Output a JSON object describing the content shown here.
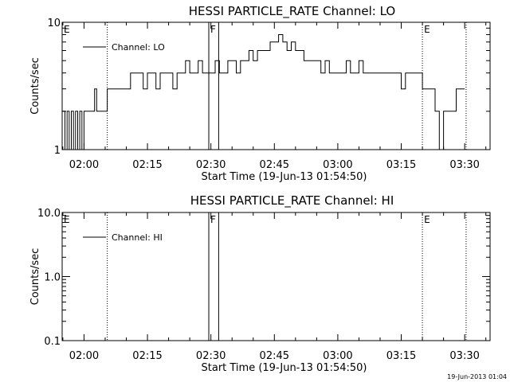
{
  "footer_timestamp": "19-Jun-2013 01:04",
  "chart_data": [
    {
      "type": "line",
      "title": "HESSI PARTICLE_RATE Channel: LO",
      "xlabel": "Start Time (19-Jun-13 01:54:50)",
      "ylabel": "Counts/sec",
      "yscale": "log",
      "ylim": [
        1,
        10
      ],
      "ytick_labels": [
        "1",
        "10"
      ],
      "xlim": [
        "01:54:50",
        "03:36:00"
      ],
      "xtick_labels": [
        "02:00",
        "02:15",
        "02:30",
        "02:45",
        "03:00",
        "03:15",
        "03:30"
      ],
      "legend": {
        "position": "top-left",
        "label": "Channel: LO"
      },
      "markers": [
        {
          "label": "E",
          "time": "01:54:50",
          "style": "dotted"
        },
        {
          "label": "",
          "time": "02:05:30",
          "style": "dotted"
        },
        {
          "label": "F",
          "time": "02:29:30",
          "style": "solid"
        },
        {
          "label": "",
          "time": "02:31:50",
          "style": "solid"
        },
        {
          "label": "E",
          "time": "03:20:00",
          "style": "dotted"
        },
        {
          "label": "",
          "time": "03:30:20",
          "style": "dotted"
        }
      ],
      "series": [
        {
          "name": "Channel: LO",
          "x": [
            "01:54:50",
            "01:55:30",
            "01:56:00",
            "01:56:30",
            "01:57:00",
            "01:57:30",
            "01:58:00",
            "01:58:30",
            "01:59:00",
            "01:59:30",
            "02:00:00",
            "02:01:00",
            "02:02:00",
            "02:02:30",
            "02:03:00",
            "02:04:00",
            "02:05:00",
            "02:05:30",
            "02:06:00",
            "02:07:00",
            "02:08:00",
            "02:09:00",
            "02:10:00",
            "02:11:00",
            "02:12:00",
            "02:13:00",
            "02:14:00",
            "02:15:00",
            "02:16:00",
            "02:17:00",
            "02:18:00",
            "02:19:00",
            "02:20:00",
            "02:21:00",
            "02:22:00",
            "02:23:00",
            "02:24:00",
            "02:25:00",
            "02:26:00",
            "02:27:00",
            "02:28:00",
            "02:29:00",
            "02:30:00",
            "02:31:00",
            "02:32:00",
            "02:33:00",
            "02:34:00",
            "02:35:00",
            "02:36:00",
            "02:37:00",
            "02:38:00",
            "02:39:00",
            "02:40:00",
            "02:41:00",
            "02:42:00",
            "02:43:00",
            "02:44:00",
            "02:45:00",
            "02:46:00",
            "02:47:00",
            "02:48:00",
            "02:49:00",
            "02:50:00",
            "02:51:00",
            "02:52:00",
            "02:53:00",
            "02:54:00",
            "02:55:00",
            "02:56:00",
            "02:57:00",
            "02:58:00",
            "02:59:00",
            "03:00:00",
            "03:01:00",
            "03:02:00",
            "03:03:00",
            "03:04:00",
            "03:05:00",
            "03:06:00",
            "03:07:00",
            "03:08:00",
            "03:09:00",
            "03:10:00",
            "03:11:00",
            "03:12:00",
            "03:13:00",
            "03:14:00",
            "03:15:00",
            "03:16:00",
            "03:17:00",
            "03:18:00",
            "03:19:00",
            "03:20:00",
            "03:21:00",
            "03:22:00",
            "03:23:00",
            "03:24:00",
            "03:25:00",
            "03:26:00",
            "03:27:00",
            "03:28:00",
            "03:29:00",
            "03:30:00"
          ],
          "y": [
            2,
            1,
            2,
            1,
            2,
            1,
            2,
            1,
            2,
            1,
            2,
            2,
            2,
            3,
            2,
            2,
            2,
            3,
            3,
            3,
            3,
            3,
            3,
            4,
            4,
            4,
            3,
            4,
            4,
            3,
            4,
            4,
            4,
            3,
            4,
            4,
            5,
            4,
            4,
            5,
            4,
            4,
            4,
            5,
            4,
            4,
            5,
            5,
            4,
            5,
            5,
            6,
            5,
            6,
            6,
            6,
            7,
            7,
            8,
            7,
            6,
            7,
            6,
            6,
            5,
            5,
            5,
            5,
            4,
            5,
            4,
            4,
            4,
            4,
            5,
            4,
            4,
            5,
            4,
            4,
            4,
            4,
            4,
            4,
            4,
            4,
            4,
            3,
            4,
            4,
            4,
            4,
            3,
            3,
            3,
            2,
            1,
            2,
            2,
            2,
            3,
            3,
            3
          ]
        }
      ]
    },
    {
      "type": "line",
      "title": "HESSI PARTICLE_RATE Channel: HI",
      "xlabel": "Start Time (19-Jun-13 01:54:50)",
      "ylabel": "Counts/sec",
      "yscale": "log",
      "ylim": [
        0.1,
        10.0
      ],
      "ytick_labels": [
        "0.1",
        "1.0",
        "10.0"
      ],
      "xlim": [
        "01:54:50",
        "03:36:00"
      ],
      "xtick_labels": [
        "02:00",
        "02:15",
        "02:30",
        "02:45",
        "03:00",
        "03:15",
        "03:30"
      ],
      "legend": {
        "position": "top-left",
        "label": "Channel: HI"
      },
      "markers": [
        {
          "label": "E",
          "time": "01:54:50",
          "style": "dotted"
        },
        {
          "label": "",
          "time": "02:05:30",
          "style": "dotted"
        },
        {
          "label": "F",
          "time": "02:29:30",
          "style": "solid"
        },
        {
          "label": "",
          "time": "02:31:50",
          "style": "solid"
        },
        {
          "label": "E",
          "time": "03:20:00",
          "style": "dotted"
        },
        {
          "label": "",
          "time": "03:30:20",
          "style": "dotted"
        }
      ],
      "series": [
        {
          "name": "Channel: HI",
          "x": [],
          "y": []
        }
      ]
    }
  ]
}
